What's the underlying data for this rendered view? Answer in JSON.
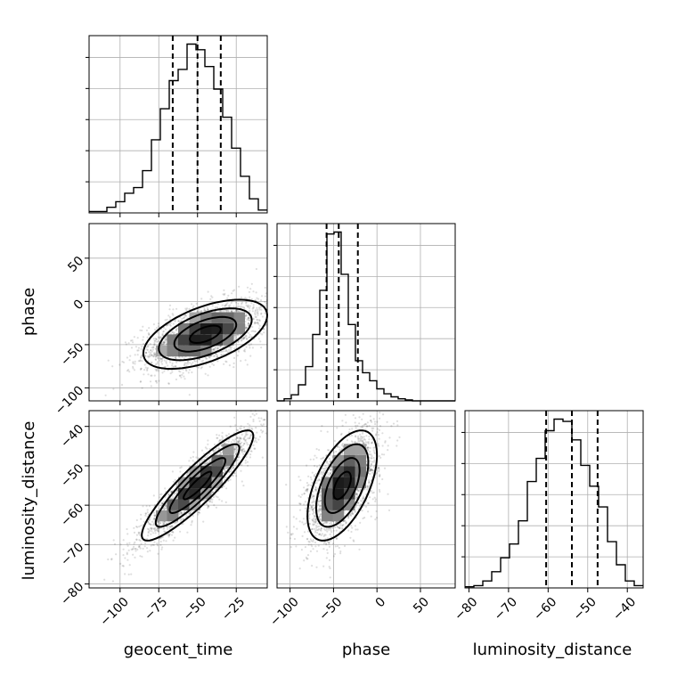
{
  "chart_data": {
    "type": "corner",
    "parameters": [
      "geocent_time",
      "phase",
      "luminosity_distance"
    ],
    "ranges": {
      "geocent_time": [
        -120,
        -5
      ],
      "phase": [
        -115,
        90
      ],
      "luminosity_distance": [
        -81,
        -36
      ]
    },
    "ticks": {
      "geocent_time": [
        -100,
        -75,
        -50,
        -25
      ],
      "phase": [
        -100,
        -50,
        0,
        50
      ],
      "luminosity_distance": [
        -80,
        -70,
        -60,
        -50,
        -40
      ]
    },
    "tick_labels": {
      "geocent_time": [
        "−100",
        "−75",
        "−50",
        "−25"
      ],
      "phase": [
        "−100",
        "−50",
        "0",
        "50"
      ],
      "luminosity_distance": [
        "−80",
        "−70",
        "−60",
        "−50",
        "−40"
      ]
    },
    "histograms": {
      "geocent_time": {
        "edges": [
          -120,
          -114.25,
          -108.5,
          -102.75,
          -97,
          -91.25,
          -85.5,
          -79.75,
          -74,
          -68.25,
          -62.5,
          -56.75,
          -51,
          -45.25,
          -39.5,
          -33.75,
          -28,
          -22.25,
          -16.5,
          -10.75,
          -5
        ],
        "counts": [
          0.5,
          0.5,
          2,
          4,
          7,
          9,
          15,
          26,
          37,
          47,
          51,
          60,
          58,
          52,
          44,
          34,
          23,
          13,
          5,
          1
        ],
        "quantiles": [
          -66,
          -50,
          -35
        ]
      },
      "phase": {
        "edges": [
          -115,
          -106.8,
          -98.6,
          -90.4,
          -82.2,
          -74,
          -65.8,
          -57.6,
          -49.4,
          -41.2,
          -33,
          -24.8,
          -16.6,
          -8.4,
          -0.2,
          8,
          16.2,
          24.4,
          32.6,
          40.8,
          49,
          57.2,
          65.4,
          73.6,
          81.8,
          90
        ],
        "counts": [
          0,
          1,
          3,
          8,
          17,
          33,
          55,
          83,
          84,
          63,
          38,
          20,
          14,
          10,
          6,
          3.5,
          2,
          1,
          0.5,
          0,
          0,
          0,
          0,
          0,
          0
        ],
        "quantiles": [
          -58,
          -44,
          -22
        ]
      },
      "luminosity_distance": {
        "edges": [
          -81,
          -78.75,
          -76.5,
          -74.25,
          -72,
          -69.75,
          -67.5,
          -65.25,
          -63,
          -60.75,
          -58.5,
          -56.25,
          -54,
          -51.75,
          -49.5,
          -47.25,
          -45,
          -42.75,
          -40.5,
          -38.25,
          -36
        ],
        "counts": [
          0.5,
          1,
          3,
          7,
          13,
          19,
          29,
          46,
          56,
          68,
          73,
          72,
          64,
          53,
          44,
          35,
          20,
          10,
          3,
          1
        ],
        "quantiles": [
          -60.5,
          -54,
          -47.5
        ]
      }
    },
    "pairs": [
      {
        "x": "geocent_time",
        "y": "phase",
        "mean": [
          -45,
          -38
        ],
        "sd": [
          20,
          20
        ],
        "corr": 0.55,
        "contour_levels_sigma": [
          0.5,
          1.0,
          1.5,
          2.0
        ]
      },
      {
        "x": "geocent_time",
        "y": "luminosity_distance",
        "mean": [
          -50,
          -55
        ],
        "sd": [
          18,
          7
        ],
        "corr": 0.9,
        "contour_levels_sigma": [
          0.5,
          1.0,
          1.5,
          2.0
        ]
      },
      {
        "x": "phase",
        "y": "luminosity_distance",
        "mean": [
          -40,
          -55
        ],
        "sd": [
          20,
          7
        ],
        "corr": 0.55,
        "contour_levels_sigma": [
          0.5,
          1.0,
          1.5,
          2.0
        ]
      }
    ],
    "grid": true,
    "legend": "none"
  }
}
